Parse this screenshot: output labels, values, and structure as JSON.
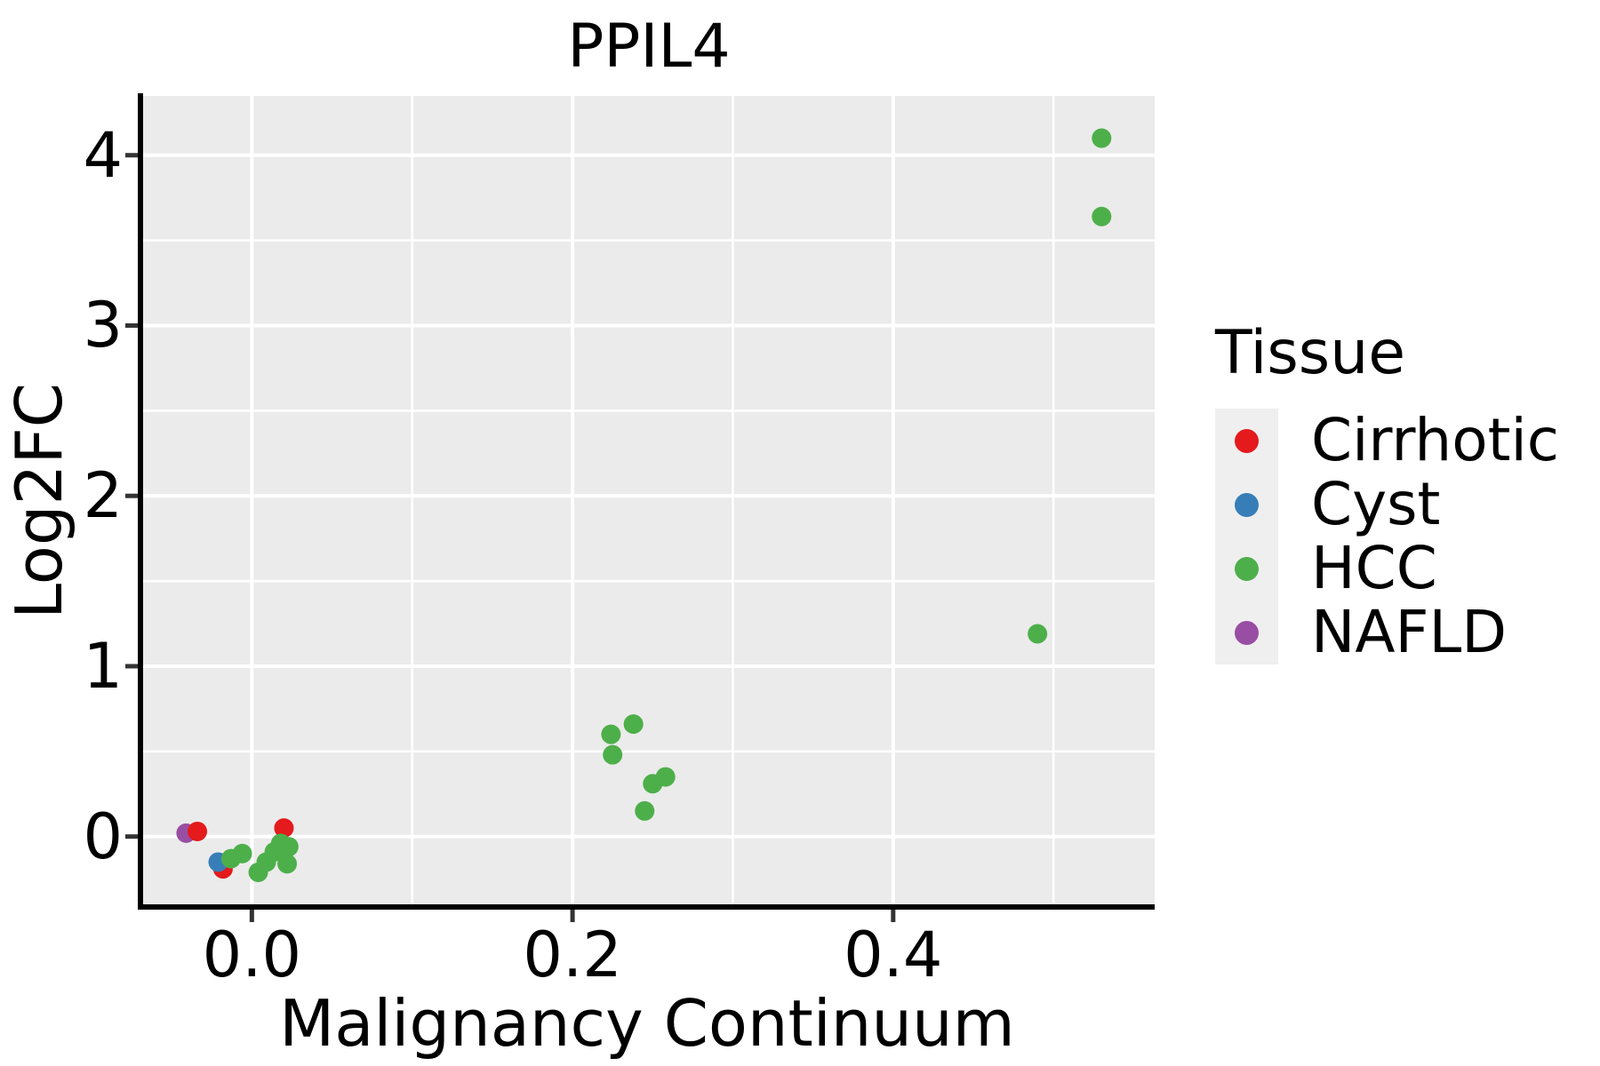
{
  "colors": {
    "panel_background": "#ebebeb",
    "grid": "#ffffff",
    "spine": "#000000",
    "tick_mark": "#333333",
    "text": "#000000",
    "legend_key_background": "#efefef"
  },
  "legend": {
    "title": "Tissue",
    "position": "right",
    "items": [
      {
        "label": "Cirrhotic",
        "color": "#e41a1c"
      },
      {
        "label": "Cyst",
        "color": "#377eb8"
      },
      {
        "label": "HCC",
        "color": "#4daf4a"
      },
      {
        "label": "NAFLD",
        "color": "#984ea3"
      }
    ]
  },
  "chart_data": {
    "type": "scatter",
    "title": "PPIL4",
    "xlabel": "Malignancy Continuum",
    "ylabel": "Log2FC",
    "xlim": [
      -0.0695,
      0.5631
    ],
    "ylim": [
      -0.4136,
      4.348
    ],
    "grid": "white major and minor gridlines on gray panel",
    "legend_position": "right",
    "x_ticks": [
      {
        "value": 0.0,
        "label": "0.0"
      },
      {
        "value": 0.2,
        "label": "0.2"
      },
      {
        "value": 0.4,
        "label": "0.4"
      }
    ],
    "y_ticks": [
      {
        "value": 0,
        "label": "0"
      },
      {
        "value": 1,
        "label": "1"
      },
      {
        "value": 2,
        "label": "2"
      },
      {
        "value": 3,
        "label": "3"
      },
      {
        "value": 4,
        "label": "4"
      }
    ],
    "x_minor_ticks": [
      0.1,
      0.3,
      0.5
    ],
    "y_minor_ticks": [
      0.5,
      1.5,
      2.5,
      3.5
    ],
    "series": [
      {
        "name": "NAFLD",
        "color": "#984ea3",
        "points": [
          [
            -0.041,
            0.02
          ]
        ]
      },
      {
        "name": "Cirrhotic",
        "color": "#e41a1c",
        "points": [
          [
            -0.034,
            0.03
          ],
          [
            -0.018,
            -0.19
          ],
          [
            0.02,
            0.05
          ]
        ]
      },
      {
        "name": "Cyst",
        "color": "#377eb8",
        "points": [
          [
            -0.021,
            -0.15
          ]
        ]
      },
      {
        "name": "HCC",
        "color": "#4daf4a",
        "points": [
          [
            -0.013,
            -0.13
          ],
          [
            -0.006,
            -0.1
          ],
          [
            0.004,
            -0.21
          ],
          [
            0.009,
            -0.15
          ],
          [
            0.014,
            -0.09
          ],
          [
            0.018,
            -0.04
          ],
          [
            0.023,
            -0.06
          ],
          [
            0.022,
            -0.16
          ],
          [
            0.224,
            0.6
          ],
          [
            0.238,
            0.66
          ],
          [
            0.225,
            0.48
          ],
          [
            0.25,
            0.31
          ],
          [
            0.258,
            0.35
          ],
          [
            0.245,
            0.15
          ],
          [
            0.49,
            1.19
          ],
          [
            0.53,
            4.1
          ],
          [
            0.53,
            3.64
          ]
        ]
      }
    ]
  }
}
